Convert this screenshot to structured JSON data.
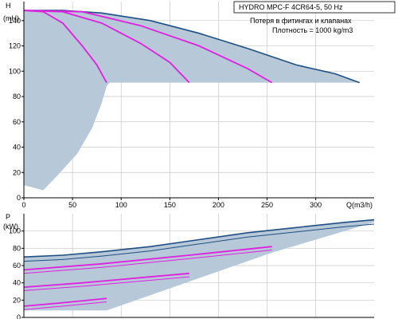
{
  "colors": {
    "background": "#ffffff",
    "grid": "#c7c7c7",
    "fill_region": "#b7c8d8",
    "system_curve": "#1f4f82",
    "pump_curves": "#e020e0",
    "axis": "#000000"
  },
  "info": {
    "title": "HYDRO MPC-F 4CR64-5, 50 Hz",
    "line1": "Потеря в фитингах и клапанах",
    "line2": "Плотность = 1000 kg/m3"
  },
  "chart_data": [
    {
      "type": "line",
      "name_label": "H",
      "unit_label": "(mH)",
      "xlabel": "Q(m3/h)",
      "xlim": [
        0,
        360
      ],
      "ylim": [
        0,
        155
      ],
      "x_ticks": [
        "0",
        "50",
        "100",
        "150",
        "200",
        "250",
        "300"
      ],
      "y_ticks": [
        "0",
        "20",
        "40",
        "60",
        "80",
        "100",
        "120",
        "140"
      ],
      "grid": true,
      "system_curve": {
        "x": [
          0,
          40,
          80,
          130,
          180,
          230,
          280,
          320,
          345
        ],
        "y": [
          148,
          148,
          146,
          140,
          130,
          118,
          105,
          98,
          91
        ]
      },
      "series": [
        {
          "x": [
            0,
            20,
            40,
            60,
            75,
            85
          ],
          "y": [
            148,
            147,
            138,
            120,
            105,
            91
          ]
        },
        {
          "x": [
            0,
            40,
            80,
            120,
            150,
            170
          ],
          "y": [
            148,
            147,
            138,
            122,
            107,
            91
          ]
        },
        {
          "x": [
            0,
            60,
            120,
            180,
            230,
            255
          ],
          "y": [
            148,
            147,
            136,
            120,
            102,
            91
          ]
        }
      ],
      "region_bottom": {
        "x": [
          0,
          20,
          35,
          55,
          70,
          80,
          85,
          88
        ],
        "y": [
          10,
          6,
          18,
          35,
          55,
          75,
          88,
          91
        ]
      }
    },
    {
      "type": "line",
      "name_label": "P",
      "unit_label": "(kW)",
      "xlim": [
        0,
        360
      ],
      "ylim": [
        0,
        120
      ],
      "x_ticks": [],
      "y_ticks": [
        "0",
        "20",
        "40",
        "60",
        "80",
        "100"
      ],
      "grid": true,
      "system_curve": {
        "x": [
          0,
          40,
          80,
          130,
          180,
          230,
          280,
          330,
          360
        ],
        "y": [
          70,
          72,
          76,
          82,
          90,
          98,
          104,
          110,
          113
        ]
      },
      "series": [
        {
          "x": [
            0,
            40,
            85
          ],
          "y": [
            13,
            17,
            22
          ]
        },
        {
          "x": [
            0,
            60,
            120,
            170
          ],
          "y": [
            35,
            40,
            46,
            51
          ]
        },
        {
          "x": [
            0,
            80,
            170,
            255
          ],
          "y": [
            55,
            62,
            72,
            82
          ]
        }
      ]
    }
  ]
}
